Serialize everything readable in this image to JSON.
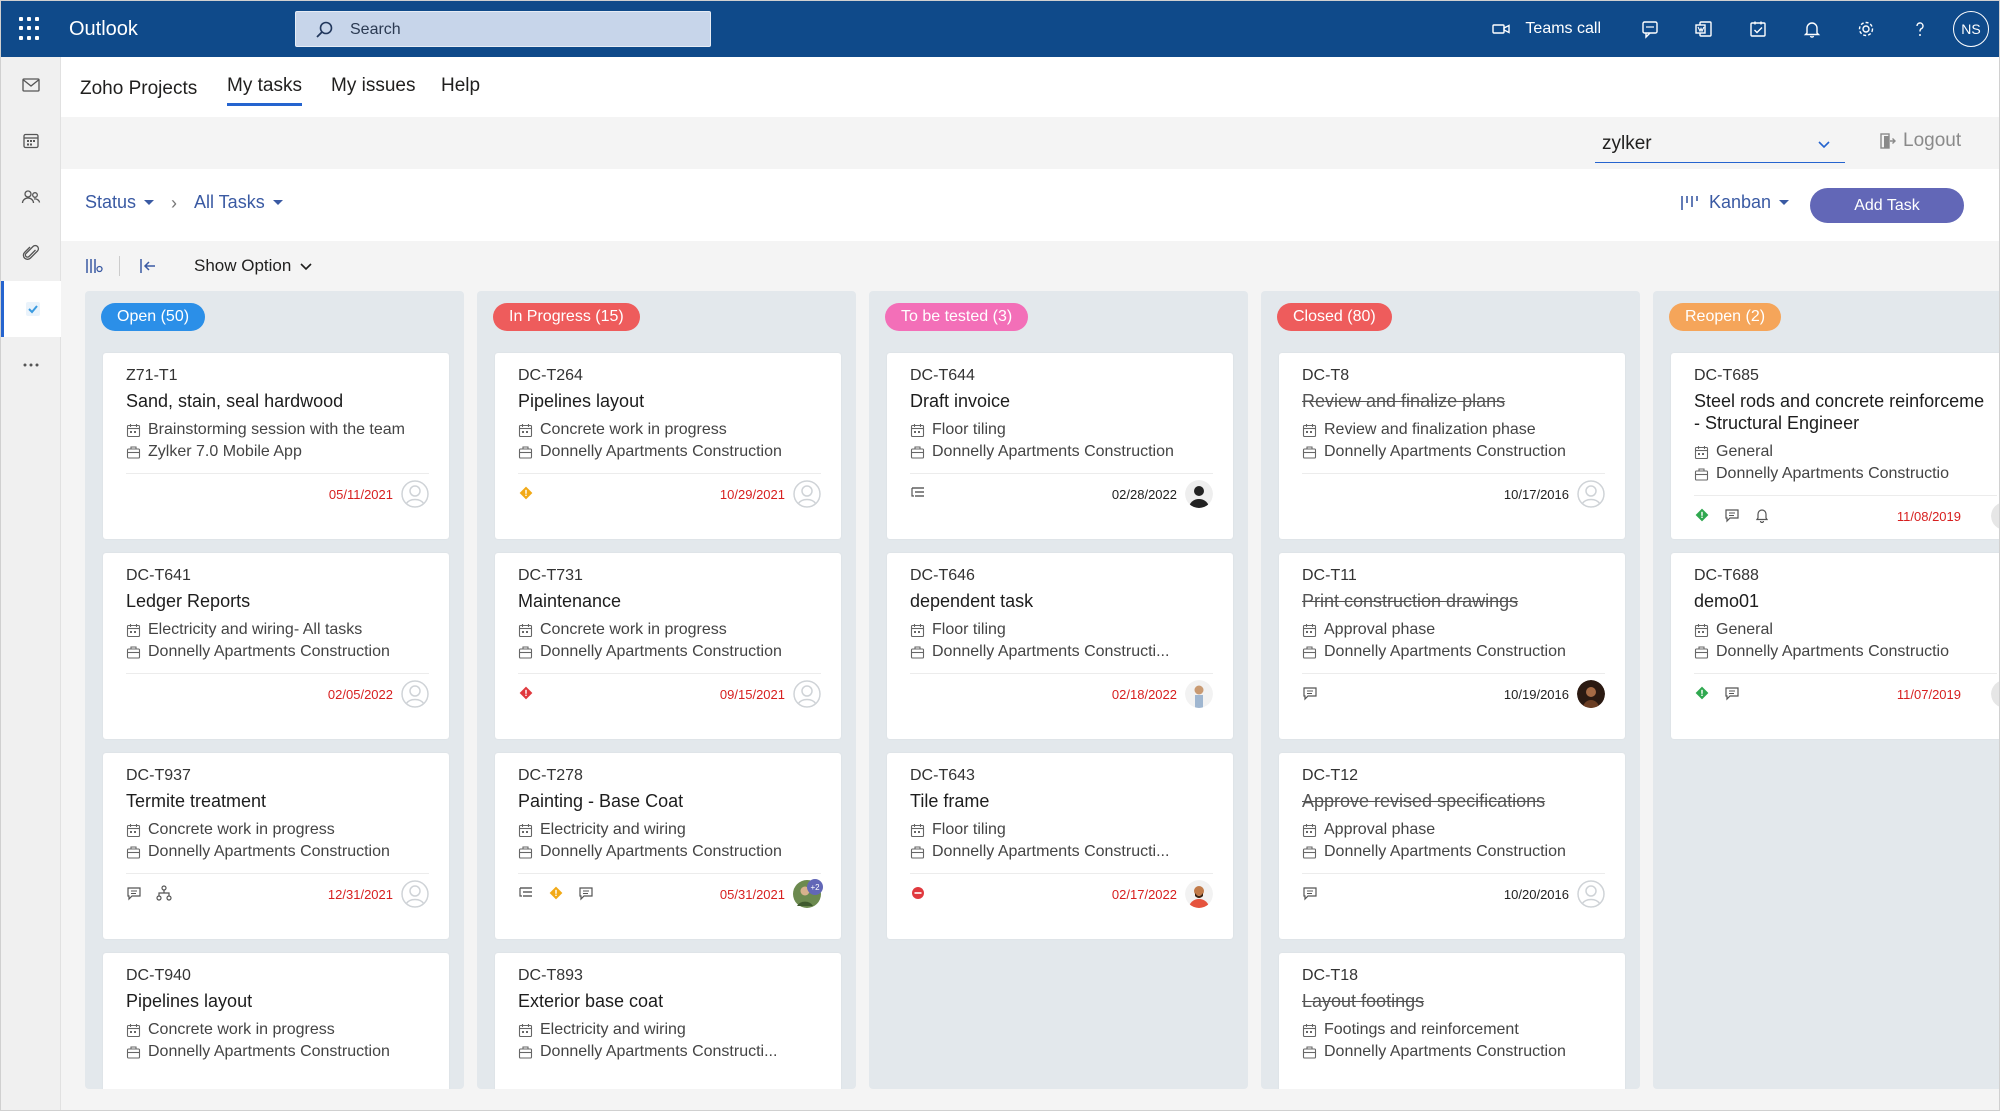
{
  "topbar": {
    "app_name": "Outlook",
    "search_placeholder": "Search",
    "teams_call": "Teams call",
    "user_initials": "NS"
  },
  "app": {
    "brand": "Zoho Projects",
    "tabs": [
      "My tasks",
      "My issues",
      "Help"
    ],
    "portal": "zylker",
    "logout": "Logout"
  },
  "filters": {
    "status": "Status",
    "all_tasks": "All Tasks",
    "view": "Kanban",
    "add_task": "Add Task",
    "show_option": "Show Option"
  },
  "columns": [
    {
      "label": "Open (50)",
      "color": "#2b8fe8",
      "cards": [
        {
          "id": "Z71-T1",
          "title": [
            "Sand, stain, seal hardwood"
          ],
          "strike": false,
          "meta1": "Brainstorming session with the team",
          "meta2": "Zylker 7.0 Mobile App",
          "date": "05/11/2021",
          "date_overdue": true,
          "icons": [],
          "avatar": "empty"
        },
        {
          "id": "DC-T641",
          "title": [
            "Ledger Reports"
          ],
          "strike": false,
          "meta1": "Electricity and wiring- All tasks",
          "meta2": "Donnelly Apartments Construction",
          "date": "02/05/2022",
          "date_overdue": true,
          "icons": [],
          "avatar": "empty"
        },
        {
          "id": "DC-T937",
          "title": [
            "Termite treatment"
          ],
          "strike": false,
          "meta1": "Concrete work in progress",
          "meta2": "Donnelly Apartments Construction",
          "date": "12/31/2021",
          "date_overdue": true,
          "icons": [
            "comment",
            "hierarchy"
          ],
          "avatar": "empty"
        },
        {
          "id": "DC-T940",
          "title": [
            "Pipelines layout"
          ],
          "strike": false,
          "meta1": "Concrete work in progress",
          "meta2": "Donnelly Apartments Construction",
          "date": "",
          "date_overdue": true,
          "icons": [],
          "avatar": "none"
        }
      ]
    },
    {
      "label": "In Progress (15)",
      "color": "#ee5c5c",
      "cards": [
        {
          "id": "DC-T264",
          "title": [
            "Pipelines layout"
          ],
          "strike": false,
          "meta1": "Concrete work in progress",
          "meta2": "Donnelly Apartments Construction",
          "date": "10/29/2021",
          "date_overdue": true,
          "icons": [
            "priority-orange"
          ],
          "avatar": "empty"
        },
        {
          "id": "DC-T731",
          "title": [
            "Maintenance"
          ],
          "strike": false,
          "meta1": "Concrete work in progress",
          "meta2": "Donnelly Apartments Construction",
          "date": "09/15/2021",
          "date_overdue": true,
          "icons": [
            "priority-red"
          ],
          "avatar": "empty"
        },
        {
          "id": "DC-T278",
          "title": [
            "Painting - Base Coat"
          ],
          "strike": false,
          "meta1": "Electricity and wiring",
          "meta2": "Donnelly Apartments Construction",
          "date": "05/31/2021",
          "date_overdue": true,
          "icons": [
            "subtasks",
            "priority-orange",
            "comment"
          ],
          "avatar": "group",
          "avatar_badge": "+2"
        },
        {
          "id": "DC-T893",
          "title": [
            "Exterior base coat"
          ],
          "strike": false,
          "meta1": "Electricity and wiring",
          "meta2": "Donnelly Apartments Constructi...",
          "date": "",
          "date_overdue": true,
          "icons": [],
          "avatar": "none"
        }
      ]
    },
    {
      "label": "To be tested (3)",
      "color": "#f36fb8",
      "cards": [
        {
          "id": "DC-T644",
          "title": [
            "Draft invoice"
          ],
          "strike": false,
          "meta1": "Floor tiling",
          "meta2": "Donnelly Apartments Construction",
          "date": "02/28/2022",
          "date_overdue": false,
          "icons": [
            "subtasks"
          ],
          "avatar": "person-dark"
        },
        {
          "id": "DC-T646",
          "title": [
            "dependent task"
          ],
          "strike": false,
          "meta1": "Floor tiling",
          "meta2": "Donnelly Apartments Constructi...",
          "date": "02/18/2022",
          "date_overdue": true,
          "icons": [],
          "avatar": "person-light"
        },
        {
          "id": "DC-T643",
          "title": [
            "Tile frame"
          ],
          "strike": false,
          "meta1": "Floor tiling",
          "meta2": "Donnelly Apartments Constructi...",
          "date": "02/17/2022",
          "date_overdue": true,
          "icons": [
            "priority-none"
          ],
          "avatar": "person-beard"
        }
      ]
    },
    {
      "label": "Closed (80)",
      "color": "#ee5c5c",
      "cards": [
        {
          "id": "DC-T8",
          "title": [
            "Review and finalize plans"
          ],
          "strike": true,
          "meta1": "Review and finalization phase",
          "meta2": "Donnelly Apartments Construction",
          "date": "10/17/2016",
          "date_overdue": false,
          "icons": [],
          "avatar": "empty"
        },
        {
          "id": "DC-T11",
          "title": [
            "Print construction drawings"
          ],
          "strike": true,
          "meta1": "Approval phase",
          "meta2": "Donnelly Apartments Construction",
          "date": "10/19/2016",
          "date_overdue": false,
          "icons": [
            "comment"
          ],
          "avatar": "person-woman"
        },
        {
          "id": "DC-T12",
          "title": [
            "Approve revised specifications"
          ],
          "strike": true,
          "meta1": "Approval phase",
          "meta2": "Donnelly Apartments Construction",
          "date": "10/20/2016",
          "date_overdue": false,
          "icons": [
            "comment"
          ],
          "avatar": "empty"
        },
        {
          "id": "DC-T18",
          "title": [
            "Layout footings"
          ],
          "strike": true,
          "meta1": "Footings and reinforcement",
          "meta2": "Donnelly Apartments Construction",
          "date": "",
          "date_overdue": false,
          "icons": [],
          "avatar": "none"
        }
      ]
    },
    {
      "label": "Reopen (2)",
      "color": "#f5a55a",
      "cards": [
        {
          "id": "DC-T685",
          "title": [
            "Steel rods and concrete reinforceme",
            "- Structural Engineer"
          ],
          "strike": false,
          "meta1": "General",
          "meta2": "Donnelly Apartments Constructio",
          "date": "11/08/2019",
          "date_overdue": true,
          "icons": [
            "priority-green",
            "comment",
            "bell"
          ],
          "avatar": "cut"
        },
        {
          "id": "DC-T688",
          "title": [
            "demo01"
          ],
          "strike": false,
          "meta1": "General",
          "meta2": "Donnelly Apartments Constructio",
          "date": "11/07/2019",
          "date_overdue": true,
          "icons": [
            "priority-green",
            "comment"
          ],
          "avatar": "cut"
        }
      ]
    }
  ]
}
